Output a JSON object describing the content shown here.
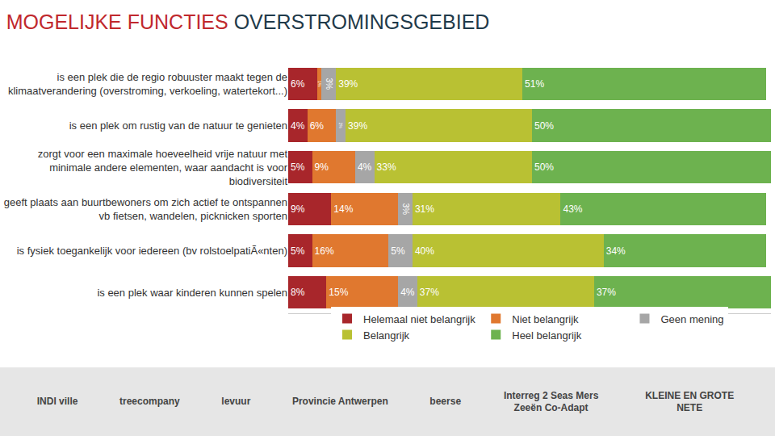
{
  "chart_data": {
    "type": "bar",
    "title": [
      {
        "text": "MOGELIJKE FUNCTIES",
        "color": "#c0282d"
      },
      {
        "text": "OVERSTROMINGSGEBIED",
        "color": "#1f3a4a"
      }
    ],
    "orientation": "horizontal",
    "stacked": true,
    "data_labels": true,
    "tick_labels": "y",
    "grid": false,
    "legend": "bottom",
    "xlim": [
      0,
      101
    ],
    "xticks": [],
    "categories": [
      "is een plek die de regio robuuster maakt tegen de\nklimaatverandering (overstroming, verkoeling, watertekort...)",
      "is een plek om rustig van de natuur te genieten",
      "zorgt voor een maximale hoeveelheid vrije natuur met\nminimale andere elementen, waar aandacht is voor\nbiodiversiteit",
      "geeft plaats aan buurtbewoners om zich actief te ontspannen\nvb fietsen, wandelen, picknicken sporten",
      "is fysiek toegankelijk voor iedereen (bv rolstoelpatiÃ«nten)",
      "is een plek waar kinderen kunnen spelen"
    ],
    "series": [
      {
        "name": "Helemaal niet belangrijk",
        "color": "#a8262b",
        "values": [
          6,
          4,
          5,
          9,
          5,
          8
        ],
        "value_labels": [
          "6%",
          "4%",
          "5%",
          "9%",
          "5%",
          "8%"
        ]
      },
      {
        "name": "Niet belangrijk",
        "color": "#e0782f",
        "values": [
          1,
          6,
          9,
          14,
          16,
          15
        ],
        "value_labels": [
          "1%",
          "6%",
          "9%",
          "14%",
          "16%",
          "15%"
        ]
      },
      {
        "name": "Geen mening",
        "color": "#a6a6a6",
        "values": [
          3,
          2,
          4,
          3,
          5,
          4
        ],
        "value_labels": [
          "3%",
          "2%",
          "4%",
          "3%",
          "5%",
          "4%"
        ]
      },
      {
        "name": "Belangrijk",
        "color": "#b9c133",
        "values": [
          39,
          39,
          33,
          31,
          40,
          37
        ],
        "value_labels": [
          "39%",
          "39%",
          "33%",
          "31%",
          "40%",
          "37%"
        ]
      },
      {
        "name": "Heel belangrijk",
        "color": "#6db24f",
        "values": [
          51,
          50,
          50,
          43,
          34,
          37
        ],
        "value_labels": [
          "51%",
          "50%",
          "50%",
          "43%",
          "34%",
          "37%"
        ]
      }
    ]
  },
  "footer": [
    "INDI ville",
    "treecompany",
    "levuur",
    "Provincie Antwerpen",
    "beerse",
    "Interreg 2 Seas Mers Zeeën Co-Adapt",
    "KLEINE EN GROTE NETE"
  ]
}
